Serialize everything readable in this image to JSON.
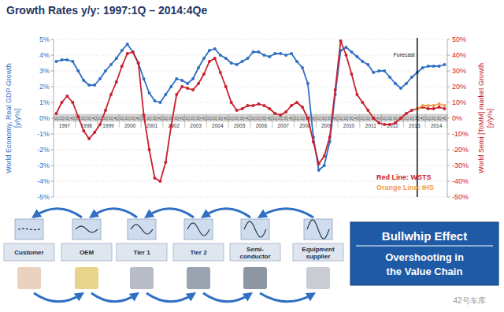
{
  "chart_data": {
    "type": "line",
    "title": "Growth Rates y/y: 1997:1Q – 2014:4Qe",
    "y_label": [
      "World Economy, Real GDP Growth",
      "[y/y%]"
    ],
    "y2_label": [
      "World Semi [ToMM] market Growth",
      "[y/y%]"
    ],
    "categories": [
      "1Q",
      "2Q",
      "3Q",
      "4Q",
      "1Q",
      "2Q",
      "3Q",
      "4Q",
      "1Q",
      "2Q",
      "3Q",
      "4Q",
      "1Q",
      "2Q",
      "3Q",
      "4Q",
      "1Q",
      "2Q",
      "3Q",
      "4Q",
      "1Q",
      "2Q",
      "3Q",
      "4Q",
      "1Q",
      "2Q",
      "3Q",
      "4Q",
      "1Q",
      "2Q",
      "3Q",
      "4Q",
      "1Q",
      "2Q",
      "3Q",
      "4Q",
      "1Q",
      "2Q",
      "3Q",
      "4Q",
      "1Q",
      "2Q",
      "3Q",
      "4Q",
      "1Q",
      "2Q",
      "3Q",
      "4Q",
      "1Q",
      "2Q",
      "3Q",
      "4Q",
      "1Q",
      "2Q",
      "3Q",
      "4Q",
      "1Q",
      "2Q",
      "3Q",
      "4Q",
      "1Q",
      "2Q",
      "3Q",
      "4Q",
      "1Q",
      "2Q",
      "3Q",
      "4Q",
      "1Q",
      "2Q",
      "3Q",
      "4Q"
    ],
    "year_labels": [
      "1997",
      "1998",
      "1999",
      "2000",
      "2001",
      "2002",
      "2003",
      "2004",
      "2005",
      "2006",
      "2007",
      "2008",
      "2009",
      "2010",
      "2011",
      "2012",
      "2013",
      "2014"
    ],
    "series": [
      {
        "color": "#2f6fc4",
        "marker": "circle",
        "values": [
          3.6,
          3.7,
          3.7,
          3.6,
          3.0,
          2.4,
          2.1,
          2.1,
          2.5,
          3.0,
          3.4,
          3.8,
          4.3,
          4.7,
          4.2,
          3.5,
          2.5,
          1.6,
          1.1,
          1.0,
          1.5,
          2.0,
          2.5,
          2.4,
          2.2,
          2.5,
          3.2,
          3.8,
          4.3,
          4.4,
          4.0,
          3.8,
          3.5,
          3.4,
          3.6,
          3.8,
          4.2,
          4.2,
          4.0,
          3.9,
          4.1,
          4.1,
          4.0,
          4.1,
          3.6,
          3.2,
          2.2,
          -1.2,
          -3.3,
          -3.0,
          -1.5,
          1.5,
          4.3,
          4.5,
          4.2,
          3.9,
          3.6,
          3.4,
          2.9,
          3.0,
          3.0,
          2.6,
          2.2,
          1.9,
          2.2,
          2.6,
          2.9,
          3.2,
          3.3,
          3.3,
          3.3,
          3.4
        ]
      },
      {
        "name": "Red Line: WSTS",
        "color": "#c8202e",
        "marker": "circle",
        "axis": "y2",
        "values": [
          3,
          10,
          14,
          10,
          1,
          -8,
          -13,
          -9,
          -4,
          5,
          15,
          23,
          33,
          41,
          42,
          35,
          2,
          -20,
          -38,
          -40,
          -28,
          -5,
          15,
          20,
          19,
          18,
          22,
          28,
          36,
          38,
          29,
          20,
          10,
          5,
          6,
          8,
          8,
          9,
          8,
          6,
          3,
          2,
          4,
          8,
          10,
          7,
          0,
          -15,
          -29,
          -24,
          -12,
          18,
          49,
          40,
          28,
          15,
          10,
          5,
          0,
          -3,
          -4,
          -4,
          -3,
          0,
          3,
          5,
          6,
          7,
          6,
          6,
          7,
          6
        ]
      },
      {
        "name": "Orange Line: IHS",
        "color": "#f39c4a",
        "marker": "circle",
        "axis": "y2",
        "values": [
          null,
          null,
          null,
          null,
          null,
          null,
          null,
          null,
          null,
          null,
          null,
          null,
          null,
          null,
          null,
          null,
          null,
          null,
          null,
          null,
          null,
          null,
          null,
          null,
          null,
          null,
          null,
          null,
          null,
          null,
          null,
          null,
          null,
          null,
          null,
          null,
          null,
          null,
          null,
          null,
          null,
          null,
          null,
          null,
          null,
          null,
          null,
          null,
          null,
          null,
          null,
          null,
          null,
          null,
          null,
          null,
          null,
          null,
          null,
          null,
          null,
          null,
          null,
          null,
          null,
          null,
          6,
          8,
          8,
          8,
          9,
          8
        ]
      }
    ],
    "ylim": [
      -5,
      5
    ],
    "yticks": [
      {
        "value": -5,
        "label": "-5%"
      },
      {
        "value": -4,
        "label": "-4%"
      },
      {
        "value": -3,
        "label": "-3%"
      },
      {
        "value": -2,
        "label": "-2%"
      },
      {
        "value": -1,
        "label": "-1%"
      },
      {
        "value": 0,
        "label": "0%"
      },
      {
        "value": 1,
        "label": "1%"
      },
      {
        "value": 2,
        "label": "2%"
      },
      {
        "value": 3,
        "label": "3%"
      },
      {
        "value": 4,
        "label": "4%"
      },
      {
        "value": 5,
        "label": "5%"
      }
    ],
    "y2lim": [
      -50,
      50
    ],
    "y2ticks": [
      {
        "value": -50,
        "label": "-50%"
      },
      {
        "value": -40,
        "label": "-40%"
      },
      {
        "value": -30,
        "label": "-30%"
      },
      {
        "value": -20,
        "label": "-20%"
      },
      {
        "value": -10,
        "label": "-10%"
      },
      {
        "value": 0,
        "label": "0%"
      },
      {
        "value": 10,
        "label": "10%"
      },
      {
        "value": 20,
        "label": "20%"
      },
      {
        "value": 30,
        "label": "30%"
      },
      {
        "value": 40,
        "label": "40%"
      },
      {
        "value": 50,
        "label": "50%"
      }
    ],
    "grid": true,
    "legend": "bottom-right",
    "forecast": {
      "label": "Forecast",
      "index": 66
    }
  },
  "diagram": {
    "stages": [
      [
        "Customer"
      ],
      [
        "OEM"
      ],
      [
        "Tier 1"
      ],
      [
        "Tier 2"
      ],
      [
        "Semi-",
        "conductor"
      ],
      [
        "Equipment",
        "supplier"
      ]
    ],
    "callout": {
      "title": "Bullwhip Effect",
      "text": [
        "Overshooting in",
        "the Value Chain"
      ]
    },
    "watermark": "42号车库"
  }
}
